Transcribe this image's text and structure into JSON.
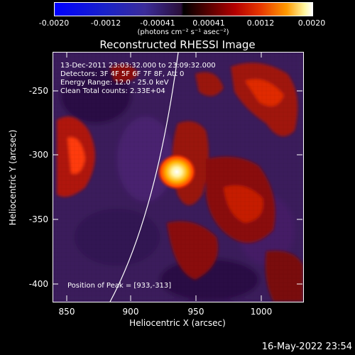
{
  "colorbar": {
    "ticks": [
      "-0.0020",
      "-0.0012",
      "-0.00041",
      "0.00041",
      "0.0012",
      "0.0020"
    ],
    "units": "(photons cm⁻² s⁻¹ asec⁻²)"
  },
  "title": "Reconstructed RHESSI Image",
  "info": {
    "time": "13-Dec-2011 23:03:32.000 to 23:09:32.000",
    "detectors": "Detectors: 3F 4F 5F 6F 7F 8F, Att 0",
    "energy": "Energy Range: 12.0 - 25.0 keV",
    "clean": "Clean    Total counts: 2.33E+04",
    "peak": "Position of Peak = [933,-313]"
  },
  "axes": {
    "xlabel": "Heliocentric X (arcsec)",
    "ylabel": "Heliocentric Y (arcsec)",
    "xticks": [
      "850",
      "900",
      "950",
      "1000"
    ],
    "yticks": [
      "-250",
      "-300",
      "-350",
      "-400"
    ],
    "xrange": [
      840,
      1032
    ],
    "yrange": [
      -413,
      -222
    ]
  },
  "colors": {
    "background": "#000000",
    "limb": "#ffffff",
    "map_base": "#3a1a5c",
    "source_core": "#fffbd0"
  },
  "datestamp": "16-May-2022 23:54"
}
